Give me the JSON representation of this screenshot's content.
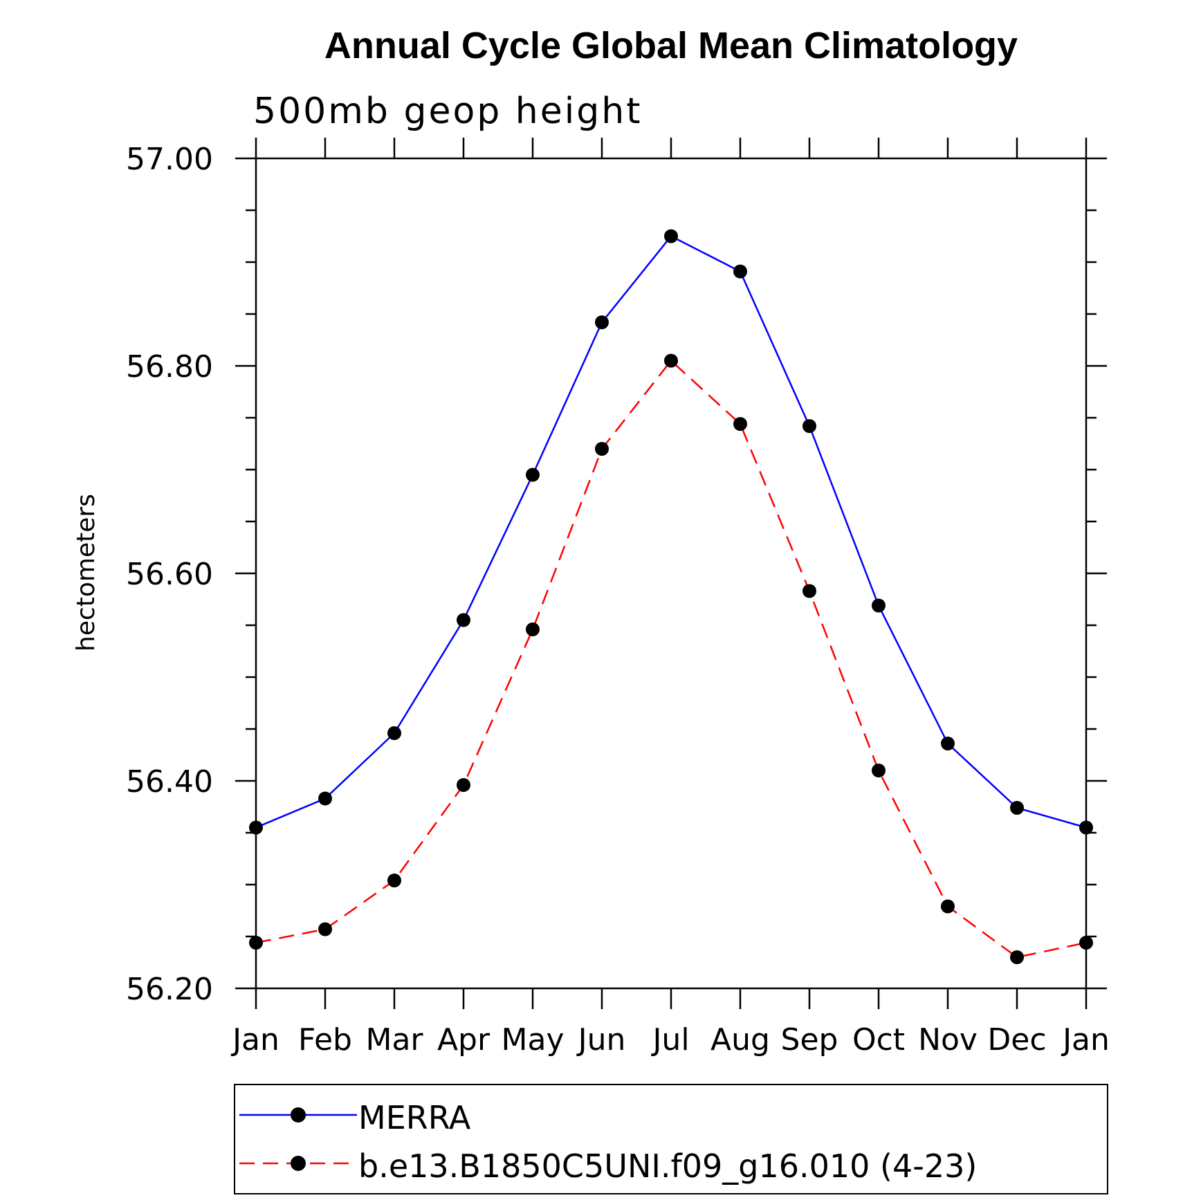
{
  "chart_data": {
    "type": "line",
    "title": "Annual Cycle Global Mean Climatology",
    "subtitle": "500mb geop height",
    "xlabel": "",
    "ylabel": "hectometers",
    "categories": [
      "Jan",
      "Feb",
      "Mar",
      "Apr",
      "May",
      "Jun",
      "Jul",
      "Aug",
      "Sep",
      "Oct",
      "Nov",
      "Dec",
      "Jan"
    ],
    "ylim": [
      56.2,
      57.0
    ],
    "yticks": [
      56.2,
      56.4,
      56.6,
      56.8,
      57.0
    ],
    "ytick_labels": [
      "56.20",
      "56.40",
      "56.60",
      "56.80",
      "57.00"
    ],
    "grid": false,
    "legend_position": "bottom",
    "series": [
      {
        "name": "MERRA",
        "color": "#0000ff",
        "dash": "solid",
        "marker": "circle",
        "values": [
          56.355,
          56.383,
          56.446,
          56.555,
          56.695,
          56.842,
          56.925,
          56.891,
          56.742,
          56.569,
          56.436,
          56.374,
          56.355
        ]
      },
      {
        "name": "b.e13.B1850C5UNI.f09_g16.010 (4-23)",
        "color": "#ff0000",
        "dash": "dashed",
        "marker": "circle",
        "values": [
          56.244,
          56.257,
          56.304,
          56.396,
          56.546,
          56.72,
          56.805,
          56.744,
          56.583,
          56.41,
          56.279,
          56.23,
          56.244
        ]
      }
    ]
  }
}
